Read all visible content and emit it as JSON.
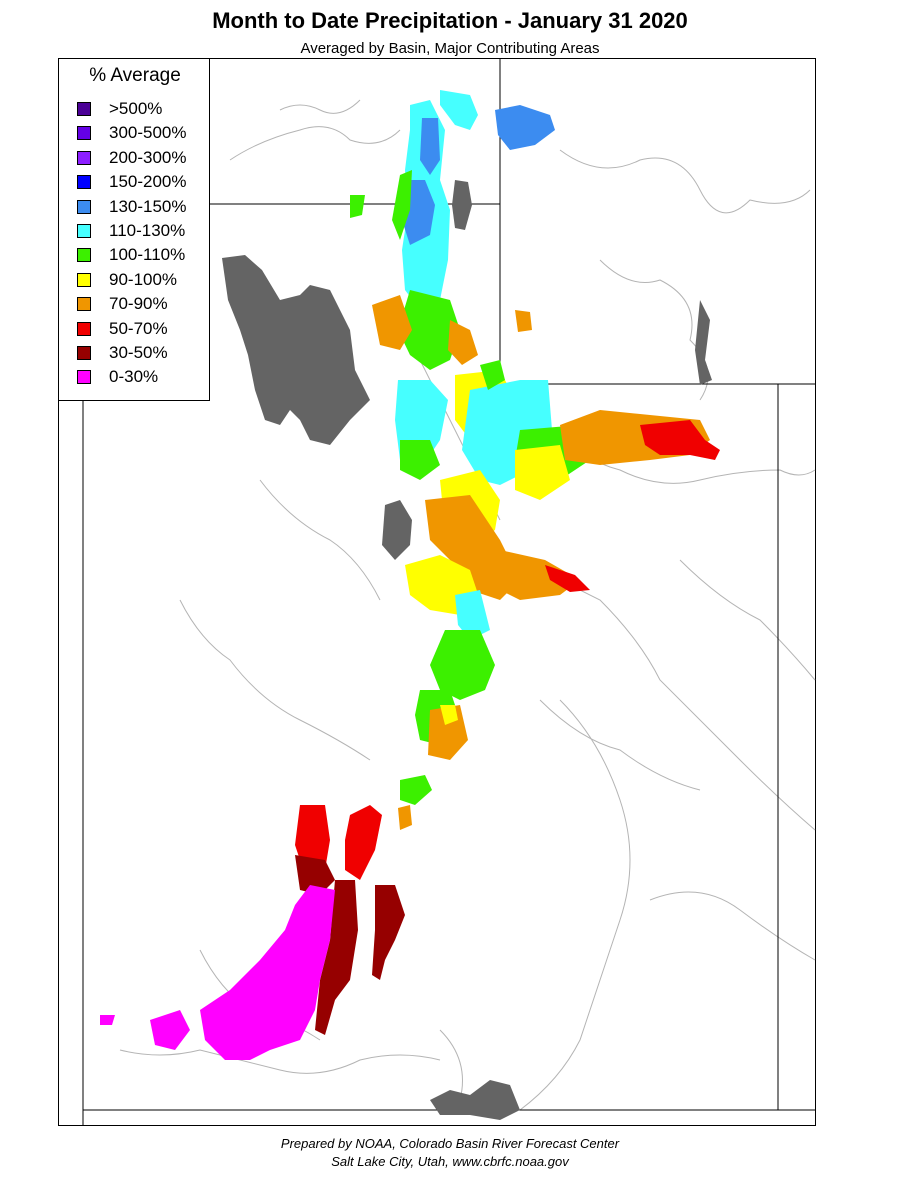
{
  "header": {
    "title": "Month to Date Precipitation - January 31 2020",
    "subtitle": "Averaged by Basin, Major Contributing Areas"
  },
  "legend": {
    "title": "% Average",
    "items": [
      {
        "label": ">500%",
        "color": "#4b0096"
      },
      {
        "label": "300-500%",
        "color": "#6400e6"
      },
      {
        "label": "200-300%",
        "color": "#8c1eff"
      },
      {
        "label": "150-200%",
        "color": "#0000ff"
      },
      {
        "label": "130-150%",
        "color": "#3c8cf0"
      },
      {
        "label": "110-130%",
        "color": "#46ffff"
      },
      {
        "label": "100-110%",
        "color": "#3cf000"
      },
      {
        "label": "90-100%",
        "color": "#ffff00"
      },
      {
        "label": "70-90%",
        "color": "#f09600"
      },
      {
        "label": "50-70%",
        "color": "#f00000"
      },
      {
        "label": "30-50%",
        "color": "#960000"
      },
      {
        "label": "0-30%",
        "color": "#ff00ff"
      }
    ]
  },
  "map": {
    "water_color": "#646464",
    "boundary_color": "#000000",
    "river_color": "#b4b4b4"
  },
  "footer": {
    "line1": "Prepared by NOAA, Colorado Basin River Forecast Center",
    "line2": "Salt Lake City, Utah, www.cbrfc.noaa.gov"
  }
}
